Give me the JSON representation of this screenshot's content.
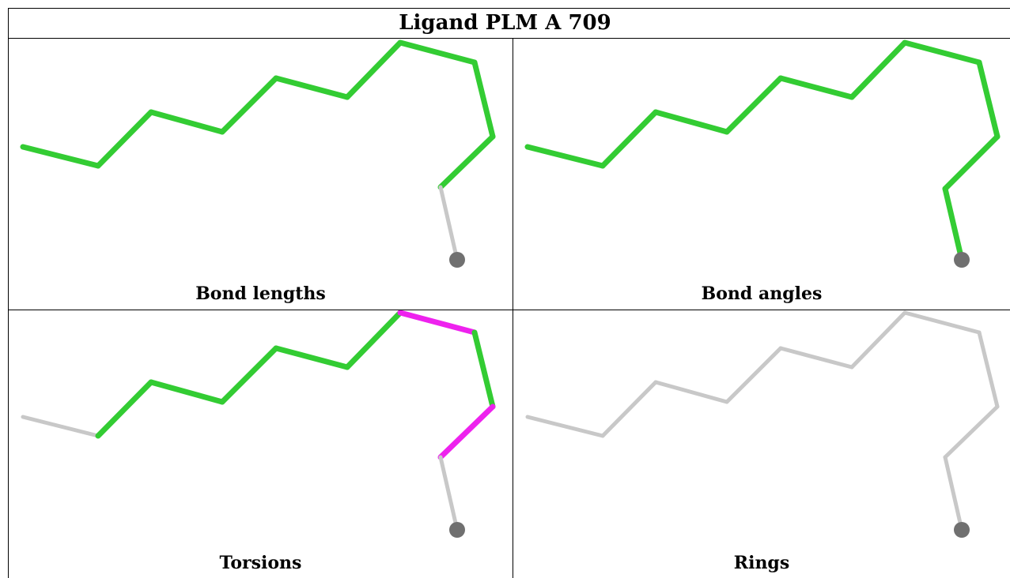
{
  "title": "Ligand PLM A 709",
  "colors": {
    "ok": "#33cc33",
    "outlier": "#ee22ee",
    "neutral": "#c8c8c8",
    "atom": "#707070",
    "border": "#000000"
  },
  "panels": [
    {
      "caption": "Bond lengths",
      "segments": [
        "ok",
        "ok",
        "ok",
        "ok",
        "ok",
        "ok",
        "ok",
        "ok",
        "ok",
        "neutral",
        "ok"
      ]
    },
    {
      "caption": "Bond angles",
      "segments": [
        "ok",
        "ok",
        "ok",
        "ok",
        "ok",
        "ok",
        "ok",
        "ok",
        "ok",
        "ok",
        "ok"
      ]
    },
    {
      "caption": "Torsions",
      "segments": [
        "neutral",
        "ok",
        "ok",
        "ok",
        "ok",
        "ok",
        "outlier",
        "ok",
        "outlier",
        "neutral",
        "neutral"
      ]
    },
    {
      "caption": "Rings",
      "segments": [
        "neutral",
        "neutral",
        "neutral",
        "neutral",
        "neutral",
        "neutral",
        "neutral",
        "neutral",
        "neutral",
        "neutral",
        "neutral"
      ]
    }
  ]
}
